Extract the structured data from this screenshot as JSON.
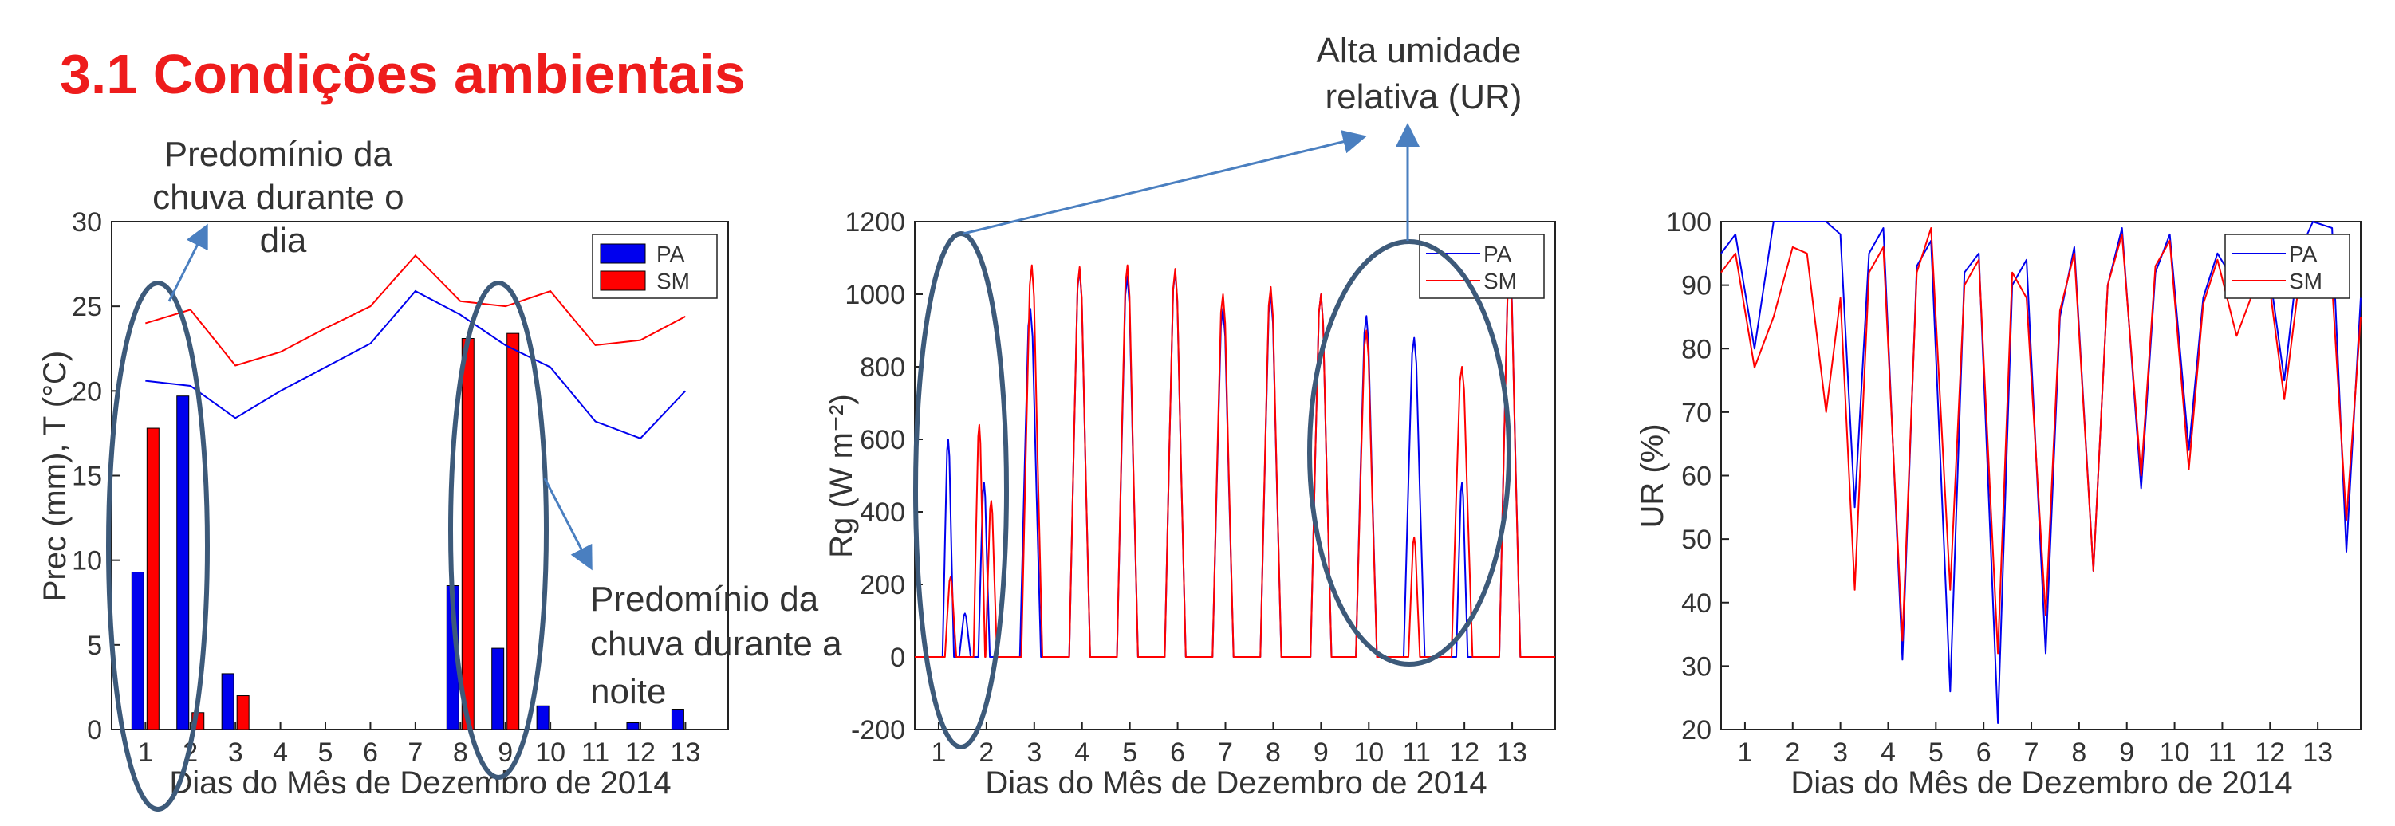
{
  "page": {
    "title": "3.1 Condições ambientais"
  },
  "annotations": {
    "rain_day": [
      "Predomínio da",
      "chuva durante o",
      "dia"
    ],
    "rain_night": [
      "Predomínio da",
      "chuva durante a",
      "noite"
    ],
    "high_humidity": [
      "Alta umidade",
      "relativa (UR)"
    ]
  },
  "colors": {
    "PA": "#0000ee",
    "SM": "#ff0000",
    "title": "#ee1c1c",
    "callout": "#3d5a7a",
    "arrow": "#4a7fc0"
  },
  "chart_data": [
    {
      "type": "bar",
      "title": "",
      "xlabel": "Dias do Mês de Dezembro de 2014",
      "ylabel": "Prec (mm), T (°C)",
      "ylim": [
        0,
        30
      ],
      "yticks": [
        "0",
        "5",
        "10",
        "15",
        "20",
        "25",
        "30"
      ],
      "categories": [
        "1",
        "2",
        "3",
        "4",
        "5",
        "6",
        "7",
        "8",
        "9",
        "10",
        "11",
        "12",
        "13"
      ],
      "legend": {
        "position": "top-right",
        "entries": [
          "PA",
          "SM"
        ]
      },
      "series": [
        {
          "name": "PA",
          "kind": "bar",
          "values": [
            9.3,
            19.7,
            3.3,
            0,
            0,
            0,
            0,
            8.5,
            4.8,
            1.4,
            0,
            0.4,
            1.2
          ]
        },
        {
          "name": "SM",
          "kind": "bar",
          "values": [
            17.8,
            1.0,
            2.0,
            0,
            0,
            0,
            0,
            23.1,
            23.4,
            0,
            0,
            0,
            0
          ]
        },
        {
          "name": "PA",
          "kind": "line",
          "values": [
            20.6,
            20.3,
            18.4,
            20.0,
            21.4,
            22.8,
            25.9,
            24.5,
            22.7,
            21.4,
            18.2,
            17.2,
            20.0
          ]
        },
        {
          "name": "SM",
          "kind": "line",
          "values": [
            24.0,
            24.8,
            21.5,
            22.3,
            23.7,
            25.0,
            28.0,
            25.3,
            25.0,
            25.9,
            22.7,
            23.0,
            24.4
          ]
        }
      ]
    },
    {
      "type": "line",
      "title": "",
      "xlabel": "Dias do Mês de Dezembro de 2014",
      "ylabel": "Rg  (W m⁻²)",
      "ylim": [
        -200,
        1200
      ],
      "xlim": [
        0.5,
        13.9
      ],
      "yticks": [
        "-200",
        "0",
        "200",
        "400",
        "600",
        "800",
        "1000",
        "1200"
      ],
      "xticks": [
        "1",
        "2",
        "3",
        "4",
        "5",
        "6",
        "7",
        "8",
        "9",
        "10",
        "11",
        "12",
        "13"
      ],
      "legend": {
        "position": "top-right",
        "entries": [
          "PA",
          "SM"
        ]
      },
      "series": [
        {
          "name": "PA",
          "peaks": [
            [
              1.2,
              600
            ],
            [
              1.55,
              120
            ],
            [
              1.95,
              480
            ],
            [
              2.92,
              960
            ],
            [
              3.95,
              1070
            ],
            [
              4.95,
              1050
            ],
            [
              5.95,
              1065
            ],
            [
              6.95,
              960
            ],
            [
              7.95,
              1000
            ],
            [
              9.0,
              1000
            ],
            [
              9.95,
              940
            ],
            [
              10.95,
              880
            ],
            [
              11.95,
              480
            ],
            [
              12.95,
              1070
            ]
          ]
        },
        {
          "name": "SM",
          "peaks": [
            [
              1.25,
              220
            ],
            [
              1.85,
              640
            ],
            [
              2.1,
              430
            ],
            [
              2.95,
              1080
            ],
            [
              3.95,
              1075
            ],
            [
              4.95,
              1080
            ],
            [
              5.95,
              1070
            ],
            [
              6.95,
              1000
            ],
            [
              7.95,
              1020
            ],
            [
              9.0,
              1000
            ],
            [
              9.95,
              900
            ],
            [
              10.95,
              330
            ],
            [
              11.95,
              800
            ],
            [
              12.95,
              1060
            ]
          ]
        }
      ]
    },
    {
      "type": "line",
      "title": "",
      "xlabel": "Dias do Mês de Dezembro de 2014",
      "ylabel": "UR  (%)",
      "ylim": [
        20,
        100
      ],
      "xlim": [
        0.5,
        13.9
      ],
      "yticks": [
        "20",
        "30",
        "40",
        "50",
        "60",
        "70",
        "80",
        "90",
        "100"
      ],
      "xticks": [
        "1",
        "2",
        "3",
        "4",
        "5",
        "6",
        "7",
        "8",
        "9",
        "10",
        "11",
        "12",
        "13"
      ],
      "legend": {
        "position": "top-right",
        "entries": [
          "PA",
          "SM"
        ]
      },
      "series": [
        {
          "name": "PA",
          "x": [
            0.5,
            0.8,
            1.2,
            1.6,
            2.0,
            2.4,
            2.7,
            3.0,
            3.3,
            3.6,
            3.9,
            4.3,
            4.6,
            4.9,
            5.3,
            5.6,
            5.9,
            6.3,
            6.6,
            6.9,
            7.3,
            7.6,
            7.9,
            8.3,
            8.6,
            8.9,
            9.3,
            9.6,
            9.9,
            10.3,
            10.6,
            10.9,
            11.3,
            11.6,
            11.9,
            12.3,
            12.6,
            12.9,
            13.3,
            13.6,
            13.9
          ],
          "values": [
            95,
            98,
            80,
            100,
            100,
            100,
            100,
            98,
            55,
            95,
            99,
            31,
            93,
            97,
            26,
            92,
            95,
            21,
            90,
            94,
            32,
            85,
            96,
            45,
            90,
            99,
            58,
            92,
            98,
            64,
            88,
            95,
            90,
            92,
            97,
            75,
            95,
            100,
            99,
            48,
            88
          ]
        },
        {
          "name": "SM",
          "x": [
            0.5,
            0.8,
            1.2,
            1.6,
            2.0,
            2.3,
            2.7,
            3.0,
            3.3,
            3.6,
            3.9,
            4.3,
            4.6,
            4.9,
            5.3,
            5.6,
            5.9,
            6.3,
            6.6,
            6.9,
            7.3,
            7.6,
            7.9,
            8.3,
            8.6,
            8.9,
            9.3,
            9.6,
            9.9,
            10.3,
            10.6,
            10.9,
            11.3,
            11.6,
            11.9,
            12.3,
            12.6,
            12.9,
            13.3,
            13.6,
            13.9
          ],
          "values": [
            92,
            95,
            77,
            85,
            96,
            95,
            70,
            88,
            42,
            92,
            96,
            34,
            92,
            99,
            42,
            90,
            94,
            32,
            92,
            88,
            38,
            86,
            95,
            45,
            90,
            98,
            60,
            93,
            97,
            61,
            87,
            94,
            82,
            88,
            95,
            72,
            90,
            97,
            90,
            53,
            85
          ]
        }
      ]
    }
  ]
}
